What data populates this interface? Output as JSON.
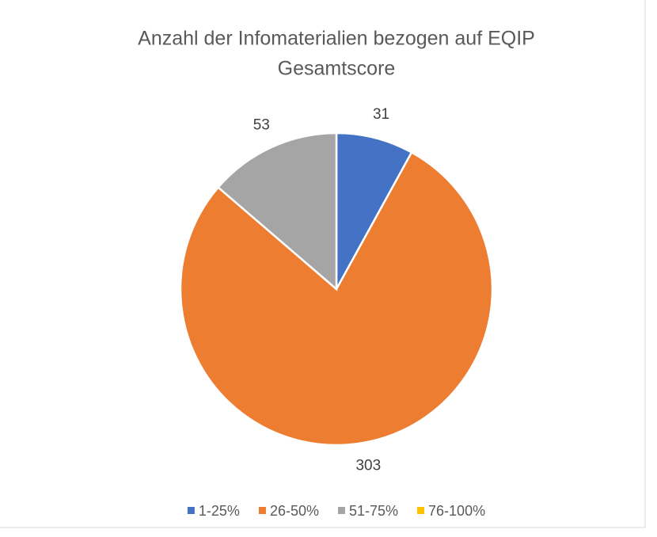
{
  "chart_data": {
    "type": "pie",
    "title": [
      "Anzahl der Infomaterialien bezogen auf EQIP",
      "Gesamtscore"
    ],
    "categories": [
      "1-25%",
      "26-50%",
      "51-75%",
      "76-100%"
    ],
    "values": [
      31,
      303,
      53,
      0
    ],
    "colors": [
      "#4472c4",
      "#ed7d31",
      "#a5a5a5",
      "#ffc000"
    ],
    "legend": "bottom"
  }
}
